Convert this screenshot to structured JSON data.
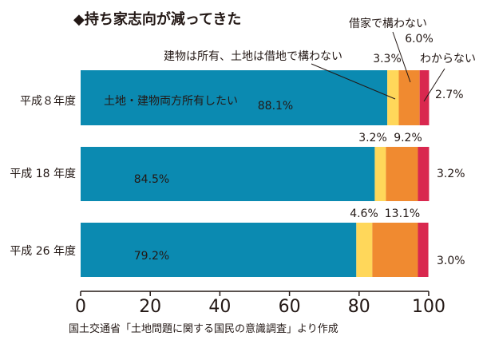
{
  "chart_data": {
    "type": "bar",
    "orientation": "horizontal",
    "stacked": true,
    "title": "◆持ち家志向が減ってきた",
    "source": "国土交通省「土地問題に関する国民の意識調査」より作成",
    "xlim": [
      0,
      100
    ],
    "x_ticks": [
      "0",
      "20",
      "40",
      "60",
      "80",
      "100"
    ],
    "grid": false,
    "categories": [
      "平成８年度",
      "平成 18 年度",
      "平成 26 年度"
    ],
    "series": [
      {
        "name": "土地・建物両方所有したい",
        "color": "#0b8ab1",
        "values": [
          88.1,
          84.5,
          79.2
        ],
        "labels": [
          "88.1%",
          "84.5%",
          "79.2%"
        ]
      },
      {
        "name": "建物は所有、土地は借地で構わない",
        "color": "#ffd75a",
        "values": [
          3.3,
          3.2,
          4.6
        ],
        "labels": [
          "3.3%",
          "3.2%",
          "4.6%"
        ]
      },
      {
        "name": "借家で構わない",
        "color": "#f08a30",
        "values": [
          6.0,
          9.2,
          13.1
        ],
        "labels": [
          "6.0%",
          "9.2%",
          "13.1%"
        ]
      },
      {
        "name": "わからない",
        "color": "#d9284f",
        "values": [
          2.7,
          3.2,
          3.0
        ],
        "labels": [
          "2.7%",
          "3.2%",
          "3.0%"
        ]
      }
    ],
    "annotations": {
      "inside_bar_label": "土地・建物両方所有したい"
    }
  }
}
